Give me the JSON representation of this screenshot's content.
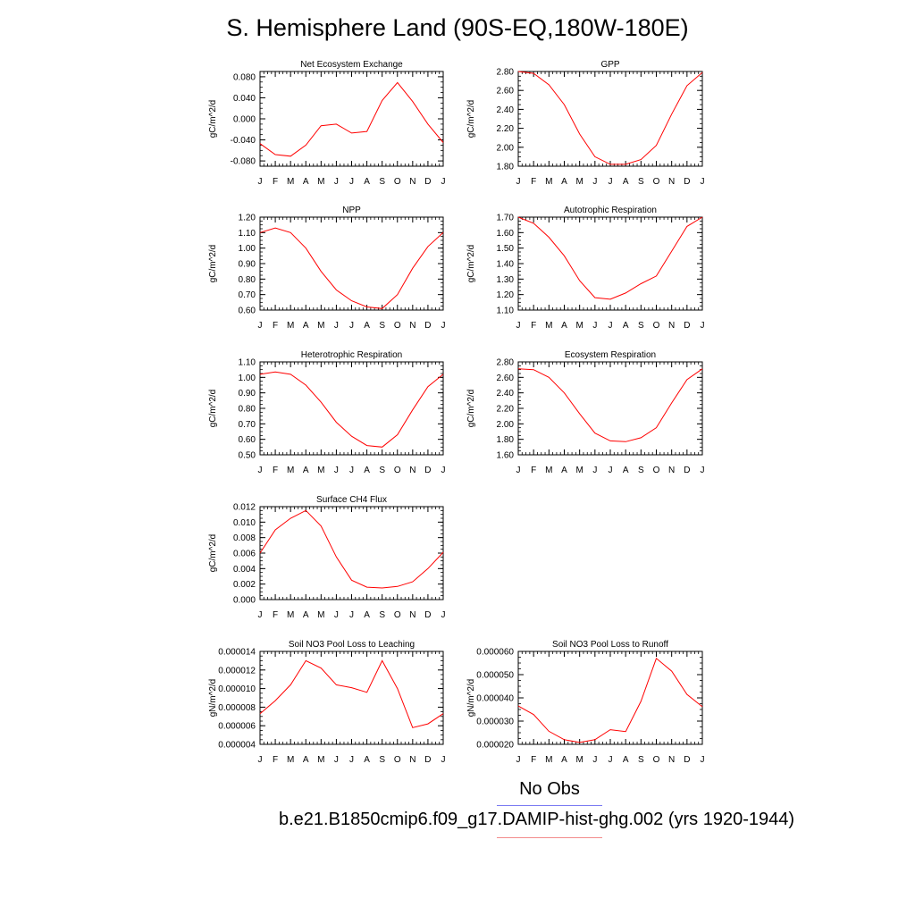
{
  "title": "S. Hemisphere Land (90S-EQ,180W-180E)",
  "months": [
    "J",
    "F",
    "M",
    "A",
    "M",
    "J",
    "J",
    "A",
    "S",
    "O",
    "N",
    "D",
    "J"
  ],
  "legend": {
    "obs_label": "No Obs",
    "obs_color": "#7b7bf2",
    "case_label": "b.e21.B1850cmip6.f09_g17.DAMIP-hist-ghg.002 (yrs 1920-1944)",
    "case_color": "#f28c8c"
  },
  "line_color": "#ff0000",
  "chart_data": [
    {
      "type": "line",
      "title": "Net Ecosystem Exchange",
      "ylabel": "gC/m^2/d",
      "ylim": [
        -0.09,
        0.09
      ],
      "yticks": [
        -0.08,
        -0.04,
        0.0,
        0.04,
        0.08
      ],
      "ytick_labels": [
        "-0.080",
        "-0.040",
        "0.000",
        "0.040",
        "0.080"
      ],
      "values": [
        -0.047,
        -0.068,
        -0.071,
        -0.05,
        -0.013,
        -0.01,
        -0.027,
        -0.024,
        0.035,
        0.069,
        0.033,
        -0.01,
        -0.045
      ]
    },
    {
      "type": "line",
      "title": "GPP",
      "ylabel": "gC/m^2/d",
      "ylim": [
        1.8,
        2.8
      ],
      "yticks": [
        1.8,
        2.0,
        2.2,
        2.4,
        2.6,
        2.8
      ],
      "ytick_labels": [
        "1.80",
        "2.00",
        "2.20",
        "2.40",
        "2.60",
        "2.80"
      ],
      "values": [
        2.8,
        2.78,
        2.66,
        2.45,
        2.14,
        1.9,
        1.82,
        1.82,
        1.87,
        2.02,
        2.35,
        2.65,
        2.79
      ]
    },
    {
      "type": "line",
      "title": "NPP",
      "ylabel": "gC/m^2/d",
      "ylim": [
        0.6,
        1.2
      ],
      "yticks": [
        0.6,
        0.7,
        0.8,
        0.9,
        1.0,
        1.1,
        1.2
      ],
      "ytick_labels": [
        "0.60",
        "0.70",
        "0.80",
        "0.90",
        "1.00",
        "1.10",
        "1.20"
      ],
      "values": [
        1.1,
        1.13,
        1.1,
        1.0,
        0.85,
        0.73,
        0.66,
        0.62,
        0.61,
        0.7,
        0.87,
        1.01,
        1.1
      ]
    },
    {
      "type": "line",
      "title": "Autotrophic Respiration",
      "ylabel": "gC/m^2/d",
      "ylim": [
        1.1,
        1.7
      ],
      "yticks": [
        1.1,
        1.2,
        1.3,
        1.4,
        1.5,
        1.6,
        1.7
      ],
      "ytick_labels": [
        "1.10",
        "1.20",
        "1.30",
        "1.40",
        "1.50",
        "1.60",
        "1.70"
      ],
      "values": [
        1.7,
        1.66,
        1.57,
        1.45,
        1.29,
        1.18,
        1.17,
        1.21,
        1.27,
        1.32,
        1.48,
        1.64,
        1.7
      ]
    },
    {
      "type": "line",
      "title": "Heterotrophic Respiration",
      "ylabel": "gC/m^2/d",
      "ylim": [
        0.5,
        1.1
      ],
      "yticks": [
        0.5,
        0.6,
        0.7,
        0.8,
        0.9,
        1.0,
        1.1
      ],
      "ytick_labels": [
        "0.50",
        "0.60",
        "0.70",
        "0.80",
        "0.90",
        "1.00",
        "1.10"
      ],
      "values": [
        1.02,
        1.035,
        1.02,
        0.95,
        0.84,
        0.71,
        0.62,
        0.56,
        0.55,
        0.63,
        0.79,
        0.94,
        1.02
      ]
    },
    {
      "type": "line",
      "title": "Ecosystem Respiration",
      "ylabel": "gC/m^2/d",
      "ylim": [
        1.6,
        2.8
      ],
      "yticks": [
        1.6,
        1.8,
        2.0,
        2.2,
        2.4,
        2.6,
        2.8
      ],
      "ytick_labels": [
        "1.60",
        "1.80",
        "2.00",
        "2.20",
        "2.40",
        "2.60",
        "2.80"
      ],
      "values": [
        2.71,
        2.7,
        2.6,
        2.4,
        2.13,
        1.88,
        1.78,
        1.77,
        1.82,
        1.95,
        2.27,
        2.57,
        2.71
      ]
    },
    {
      "type": "line",
      "title": "Surface CH4 Flux",
      "ylabel": "gC/m^2/d",
      "ylim": [
        0.0,
        0.012
      ],
      "yticks": [
        0.0,
        0.002,
        0.004,
        0.006,
        0.008,
        0.01,
        0.012
      ],
      "ytick_labels": [
        "0.000",
        "0.002",
        "0.004",
        "0.006",
        "0.008",
        "0.010",
        "0.012"
      ],
      "values": [
        0.006,
        0.009,
        0.0105,
        0.0115,
        0.0095,
        0.0055,
        0.0025,
        0.0016,
        0.0015,
        0.0017,
        0.0023,
        0.004,
        0.0061
      ]
    },
    {
      "type": "line",
      "title": "Soil NO3 Pool Loss to Leaching",
      "ylabel": "gN/m^2/d",
      "ylim": [
        4e-06,
        1.4e-05
      ],
      "yticks": [
        4e-06,
        6e-06,
        8e-06,
        1e-05,
        1.2e-05,
        1.4e-05
      ],
      "ytick_labels": [
        "0.000004",
        "0.000006",
        "0.000008",
        "0.000010",
        "0.000012",
        "0.000014"
      ],
      "values": [
        7.3e-06,
        8.7e-06,
        1.04e-05,
        1.3e-05,
        1.22e-05,
        1.04e-05,
        1.01e-05,
        9.6e-06,
        1.3e-05,
        1e-05,
        5.8e-06,
        6.2e-06,
        7.3e-06
      ]
    },
    {
      "type": "line",
      "title": "Soil NO3 Pool Loss to Runoff",
      "ylabel": "gN/m^2/d",
      "ylim": [
        2e-05,
        6e-05
      ],
      "yticks": [
        2e-05,
        3e-05,
        4e-05,
        5e-05,
        6e-05
      ],
      "ytick_labels": [
        "0.000020",
        "0.000030",
        "0.000040",
        "0.000050",
        "0.000060"
      ],
      "values": [
        3.65e-05,
        3.28e-05,
        2.56e-05,
        2.2e-05,
        2.08e-05,
        2.2e-05,
        2.63e-05,
        2.55e-05,
        3.85e-05,
        5.7e-05,
        5.15e-05,
        4.15e-05,
        3.62e-05
      ]
    }
  ]
}
